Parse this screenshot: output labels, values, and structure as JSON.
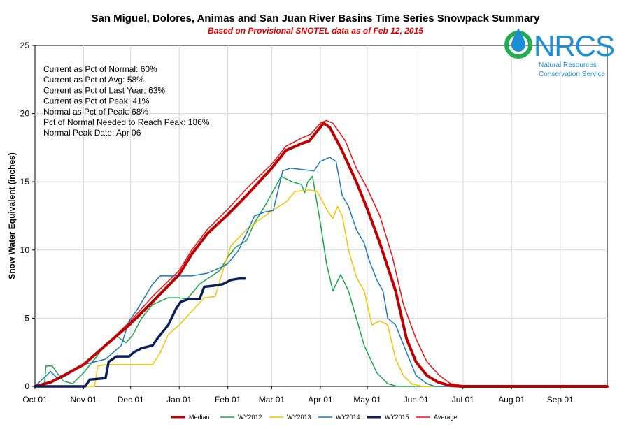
{
  "logo": {
    "acronym": "NRCS",
    "line1": "Natural Resources",
    "line2": "Conservation Service"
  },
  "chart_data": {
    "type": "line",
    "title": "San Miguel, Dolores, Animas and San Juan River Basins Time Series Snowpack Summary",
    "subtitle": "Based on Provisional SNOTEL data as of Feb 12, 2015",
    "ylabel": "Snow Water Equivalent (inches)",
    "xlabel": "",
    "ylim": [
      0,
      25
    ],
    "xlim": [
      0,
      365
    ],
    "yticks": [
      0,
      5,
      10,
      15,
      20,
      25
    ],
    "xtick_labels": [
      "Oct 01",
      "Nov 01",
      "Dec 01",
      "Jan 01",
      "Feb 01",
      "Mar 01",
      "Apr 01",
      "May 01",
      "Jun 01",
      "Jul 01",
      "Aug 01",
      "Sep 01"
    ],
    "xtick_days": [
      0,
      31,
      61,
      92,
      123,
      151,
      182,
      212,
      243,
      273,
      304,
      335
    ],
    "grid": true,
    "legend_position": "bottom",
    "stats": [
      "Current  as Pct of Normal: 60%",
      "Current  as Pct of Avg: 58%",
      "Current  as Pct of Last Year: 63%",
      "Current  as Pct of Peak: 41%",
      "Normal as Pct of Peak: 68%",
      "Pct of Normal Needed  to Reach Peak: 186%",
      "Normal Peak Date: Apr 06"
    ],
    "series": [
      {
        "name": "Median",
        "color": "#c00000",
        "width": 4,
        "points": [
          [
            0,
            0
          ],
          [
            10,
            0.3
          ],
          [
            20,
            0.9
          ],
          [
            31,
            1.6
          ],
          [
            45,
            3.0
          ],
          [
            61,
            4.6
          ],
          [
            75,
            6.2
          ],
          [
            92,
            8.2
          ],
          [
            100,
            9.7
          ],
          [
            110,
            11.2
          ],
          [
            123,
            12.6
          ],
          [
            135,
            14.0
          ],
          [
            151,
            16.0
          ],
          [
            160,
            17.3
          ],
          [
            170,
            17.8
          ],
          [
            175,
            18.0
          ],
          [
            182,
            19.0
          ],
          [
            184,
            19.3
          ],
          [
            188,
            19.0
          ],
          [
            195,
            17.5
          ],
          [
            205,
            15.0
          ],
          [
            212,
            13.0
          ],
          [
            220,
            10.5
          ],
          [
            230,
            7.0
          ],
          [
            237,
            3.5
          ],
          [
            243,
            1.8
          ],
          [
            250,
            0.8
          ],
          [
            257,
            0.3
          ],
          [
            265,
            0.05
          ],
          [
            273,
            0
          ],
          [
            365,
            0
          ]
        ]
      },
      {
        "name": "WY2012",
        "color": "#18a84a",
        "width": 1.5,
        "points": [
          [
            0,
            0
          ],
          [
            6,
            0
          ],
          [
            7,
            1.5
          ],
          [
            11,
            1.5
          ],
          [
            14,
            1.0
          ],
          [
            18,
            0.4
          ],
          [
            24,
            0.2
          ],
          [
            31,
            1.0
          ],
          [
            38,
            2.0
          ],
          [
            45,
            3.1
          ],
          [
            52,
            3.7
          ],
          [
            58,
            3.2
          ],
          [
            62,
            3.7
          ],
          [
            68,
            5.0
          ],
          [
            75,
            6.0
          ],
          [
            85,
            6.5
          ],
          [
            92,
            6.5
          ],
          [
            97,
            6.4
          ],
          [
            105,
            7.5
          ],
          [
            118,
            8.5
          ],
          [
            123,
            9.5
          ],
          [
            128,
            10.2
          ],
          [
            135,
            10.7
          ],
          [
            140,
            12.0
          ],
          [
            148,
            13.5
          ],
          [
            157,
            15.4
          ],
          [
            164,
            15.0
          ],
          [
            170,
            14.8
          ],
          [
            172,
            14.2
          ],
          [
            174,
            15.0
          ],
          [
            177,
            15.4
          ],
          [
            182,
            12.0
          ],
          [
            186,
            9.0
          ],
          [
            190,
            7.0
          ],
          [
            195,
            8.2
          ],
          [
            200,
            7.0
          ],
          [
            210,
            3.0
          ],
          [
            218,
            1.0
          ],
          [
            225,
            0.2
          ],
          [
            231,
            0
          ],
          [
            365,
            0
          ]
        ]
      },
      {
        "name": "WY2013",
        "color": "#f5c400",
        "width": 1.5,
        "points": [
          [
            0,
            0
          ],
          [
            38,
            0
          ],
          [
            40,
            1.5
          ],
          [
            45,
            1.6
          ],
          [
            61,
            1.6
          ],
          [
            75,
            1.6
          ],
          [
            80,
            2.5
          ],
          [
            85,
            3.8
          ],
          [
            92,
            4.5
          ],
          [
            100,
            5.5
          ],
          [
            108,
            6.5
          ],
          [
            115,
            6.6
          ],
          [
            122,
            9.3
          ],
          [
            125,
            10.3
          ],
          [
            135,
            11.5
          ],
          [
            150,
            12.8
          ],
          [
            160,
            13.5
          ],
          [
            166,
            14.3
          ],
          [
            175,
            14.4
          ],
          [
            180,
            14.3
          ],
          [
            186,
            13.0
          ],
          [
            190,
            12.3
          ],
          [
            193,
            13.2
          ],
          [
            196,
            12.5
          ],
          [
            200,
            10.0
          ],
          [
            205,
            8.0
          ],
          [
            210,
            7.0
          ],
          [
            215,
            4.5
          ],
          [
            220,
            4.8
          ],
          [
            225,
            4.5
          ],
          [
            230,
            2.0
          ],
          [
            235,
            0.8
          ],
          [
            240,
            0.2
          ],
          [
            247,
            0
          ],
          [
            365,
            0
          ]
        ]
      },
      {
        "name": "WY2014",
        "color": "#1f77c2",
        "width": 1.5,
        "points": [
          [
            0,
            0
          ],
          [
            10,
            1.1
          ],
          [
            15,
            0.5
          ],
          [
            20,
            0.8
          ],
          [
            25,
            1.2
          ],
          [
            31,
            1.6
          ],
          [
            45,
            2.0
          ],
          [
            55,
            3.0
          ],
          [
            60,
            4.8
          ],
          [
            65,
            5.6
          ],
          [
            75,
            7.5
          ],
          [
            80,
            8.1
          ],
          [
            92,
            8.1
          ],
          [
            100,
            8.1
          ],
          [
            110,
            8.3
          ],
          [
            120,
            8.8
          ],
          [
            123,
            9.0
          ],
          [
            130,
            10.0
          ],
          [
            140,
            12.5
          ],
          [
            147,
            12.8
          ],
          [
            152,
            12.9
          ],
          [
            158,
            15.8
          ],
          [
            163,
            16.0
          ],
          [
            170,
            15.9
          ],
          [
            178,
            15.8
          ],
          [
            182,
            16.5
          ],
          [
            188,
            16.8
          ],
          [
            192,
            16.5
          ],
          [
            196,
            14.0
          ],
          [
            200,
            13.2
          ],
          [
            205,
            11.5
          ],
          [
            210,
            10.5
          ],
          [
            213,
            9.3
          ],
          [
            218,
            7.8
          ],
          [
            222,
            7.0
          ],
          [
            225,
            5.0
          ],
          [
            230,
            4.5
          ],
          [
            237,
            2.5
          ],
          [
            243,
            0.8
          ],
          [
            250,
            0.2
          ],
          [
            255,
            0
          ],
          [
            365,
            0
          ]
        ]
      },
      {
        "name": "WY2015",
        "color": "#0a1f5c",
        "width": 3.5,
        "points": [
          [
            0,
            0
          ],
          [
            32,
            0
          ],
          [
            35,
            0.5
          ],
          [
            45,
            0.6
          ],
          [
            47,
            1.8
          ],
          [
            52,
            2.2
          ],
          [
            60,
            2.2
          ],
          [
            63,
            2.5
          ],
          [
            68,
            2.8
          ],
          [
            75,
            3.0
          ],
          [
            78,
            3.5
          ],
          [
            85,
            4.5
          ],
          [
            90,
            5.7
          ],
          [
            93,
            6.2
          ],
          [
            98,
            6.4
          ],
          [
            105,
            6.4
          ],
          [
            108,
            7.3
          ],
          [
            115,
            7.4
          ],
          [
            120,
            7.5
          ],
          [
            125,
            7.8
          ],
          [
            130,
            7.9
          ],
          [
            134,
            7.9
          ]
        ]
      },
      {
        "name": "Average",
        "color": "#ee1111",
        "width": 1.5,
        "points": [
          [
            0,
            0
          ],
          [
            10,
            0.3
          ],
          [
            20,
            0.9
          ],
          [
            31,
            1.6
          ],
          [
            45,
            3.0
          ],
          [
            61,
            4.8
          ],
          [
            75,
            6.6
          ],
          [
            92,
            8.5
          ],
          [
            100,
            10.0
          ],
          [
            110,
            11.5
          ],
          [
            123,
            13.0
          ],
          [
            135,
            14.5
          ],
          [
            151,
            16.3
          ],
          [
            160,
            17.6
          ],
          [
            170,
            18.2
          ],
          [
            176,
            18.5
          ],
          [
            182,
            19.3
          ],
          [
            186,
            19.5
          ],
          [
            190,
            19.3
          ],
          [
            198,
            18.0
          ],
          [
            205,
            16.0
          ],
          [
            212,
            14.5
          ],
          [
            220,
            12.5
          ],
          [
            228,
            9.5
          ],
          [
            235,
            6.0
          ],
          [
            243,
            3.5
          ],
          [
            250,
            1.8
          ],
          [
            258,
            0.8
          ],
          [
            265,
            0.2
          ],
          [
            273,
            0.05
          ],
          [
            280,
            0
          ],
          [
            365,
            0
          ]
        ]
      }
    ]
  }
}
